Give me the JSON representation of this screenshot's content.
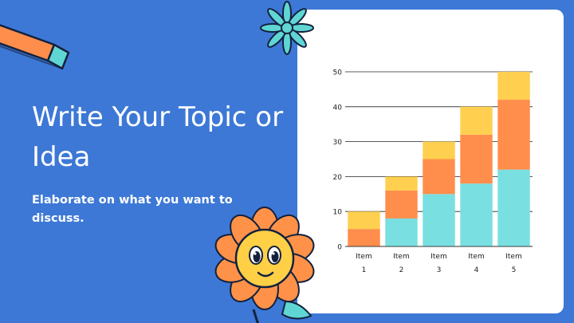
{
  "slide": {
    "title": "Write Your Topic or Idea",
    "subtitle": "Elaborate on what you want to discuss."
  },
  "colors": {
    "background": "#3d78d6",
    "card": "#ffffff",
    "series_teal": "#7adfe0",
    "series_orange": "#ff8e4c",
    "series_yellow": "#ffd04f",
    "flower_petals": "#ff9248",
    "flower_face": "#ffd046",
    "star_accent": "#5fd6d4"
  },
  "icons": [
    "chalk-stick-icon",
    "teal-starburst-icon",
    "smiling-flower-icon"
  ],
  "chart_data": {
    "type": "bar",
    "stacked": true,
    "categories": [
      "Item 1",
      "Item 2",
      "Item 3",
      "Item 4",
      "Item 5"
    ],
    "category_label_lines": [
      [
        "Item",
        "1"
      ],
      [
        "Item",
        "2"
      ],
      [
        "Item",
        "3"
      ],
      [
        "Item",
        "4"
      ],
      [
        "Item",
        "5"
      ]
    ],
    "series": [
      {
        "color": "#7adfe0",
        "values": [
          0,
          8,
          15,
          18,
          22
        ]
      },
      {
        "color": "#ff8e4c",
        "values": [
          5,
          8,
          10,
          14,
          20
        ]
      },
      {
        "color": "#ffd04f",
        "values": [
          5,
          4,
          5,
          8,
          8
        ]
      }
    ],
    "ylim": [
      0,
      50
    ],
    "yticks": [
      0,
      10,
      20,
      30,
      40,
      50
    ],
    "grid": true,
    "legend": "none"
  }
}
